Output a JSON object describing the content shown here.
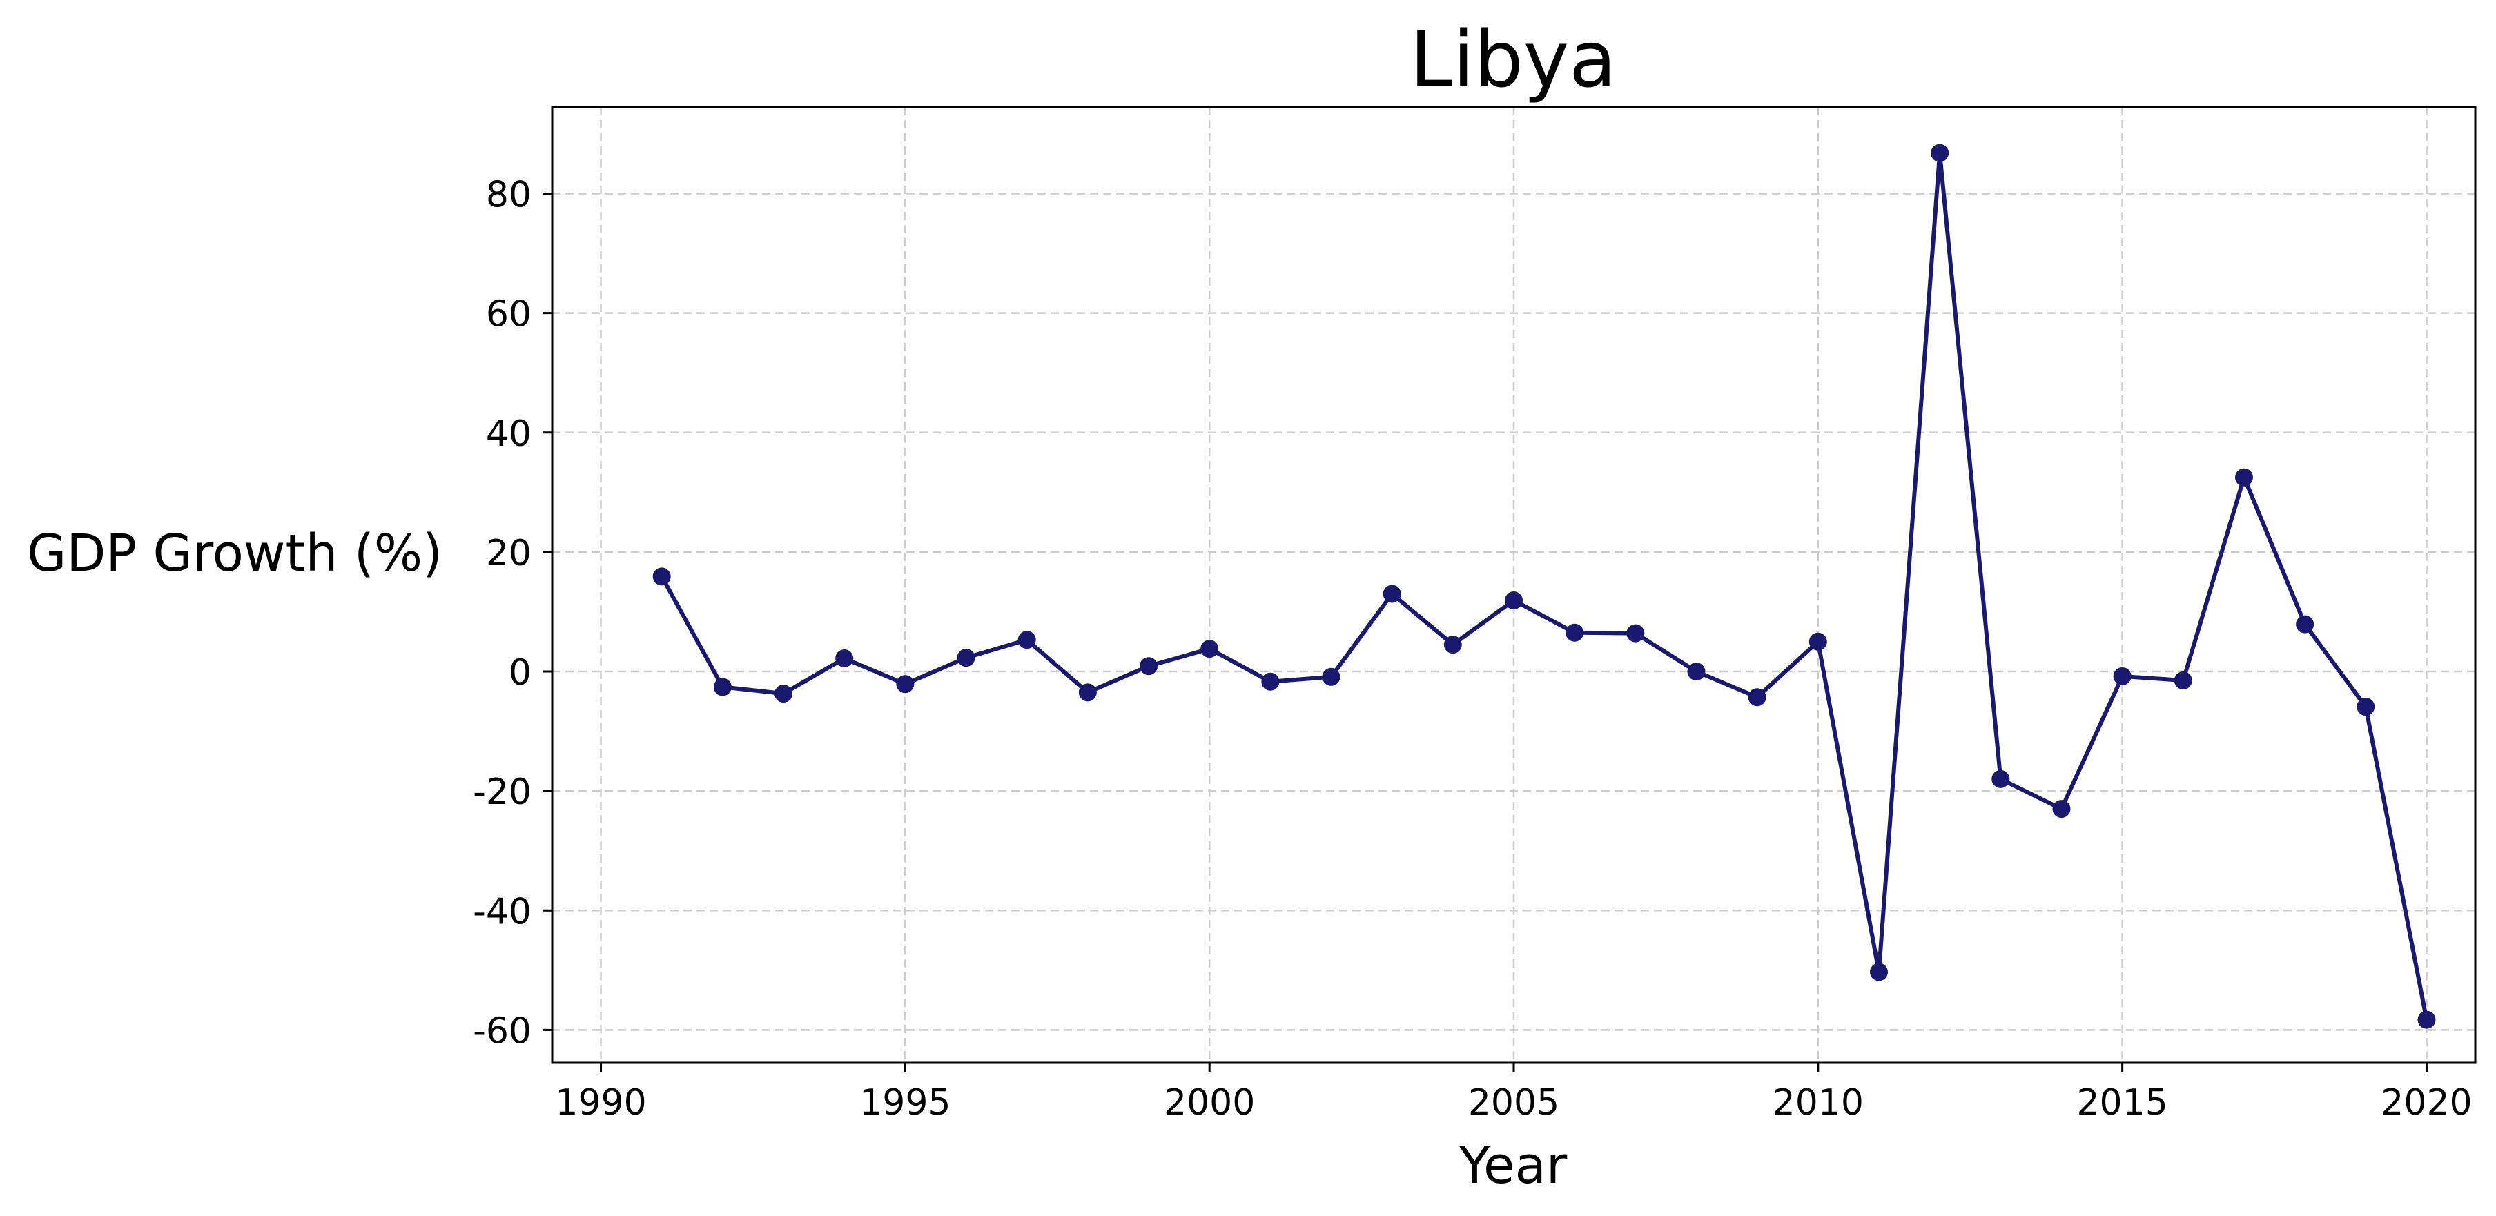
{
  "chart_data": {
    "type": "line",
    "title": "Libya",
    "xlabel": "Year",
    "ylabel": "GDP Growth (%)",
    "xlim": [
      1989.2,
      2020.8
    ],
    "ylim": [
      -65.5,
      94.5
    ],
    "xticks": [
      1990,
      1995,
      2000,
      2005,
      2010,
      2015,
      2020
    ],
    "yticks": [
      -60,
      -40,
      -20,
      0,
      20,
      40,
      60,
      80
    ],
    "grid": true,
    "series": [
      {
        "color": "#191970",
        "x": [
          1991,
          1992,
          1993,
          1994,
          1995,
          1996,
          1997,
          1998,
          1999,
          2000,
          2001,
          2002,
          2003,
          2004,
          2005,
          2006,
          2007,
          2008,
          2009,
          2010,
          2011,
          2012,
          2013,
          2014,
          2015,
          2016,
          2017,
          2018,
          2019,
          2020
        ],
        "y": [
          15.9,
          -2.6,
          -3.7,
          2.2,
          -2.1,
          2.3,
          5.3,
          -3.5,
          0.9,
          3.8,
          -1.7,
          -0.9,
          13.0,
          4.5,
          11.9,
          6.5,
          6.4,
          0.0,
          -4.3,
          5.0,
          -50.3,
          86.8,
          -18.0,
          -23.0,
          -0.8,
          -1.5,
          32.5,
          7.9,
          -5.9,
          -58.3
        ]
      }
    ]
  }
}
